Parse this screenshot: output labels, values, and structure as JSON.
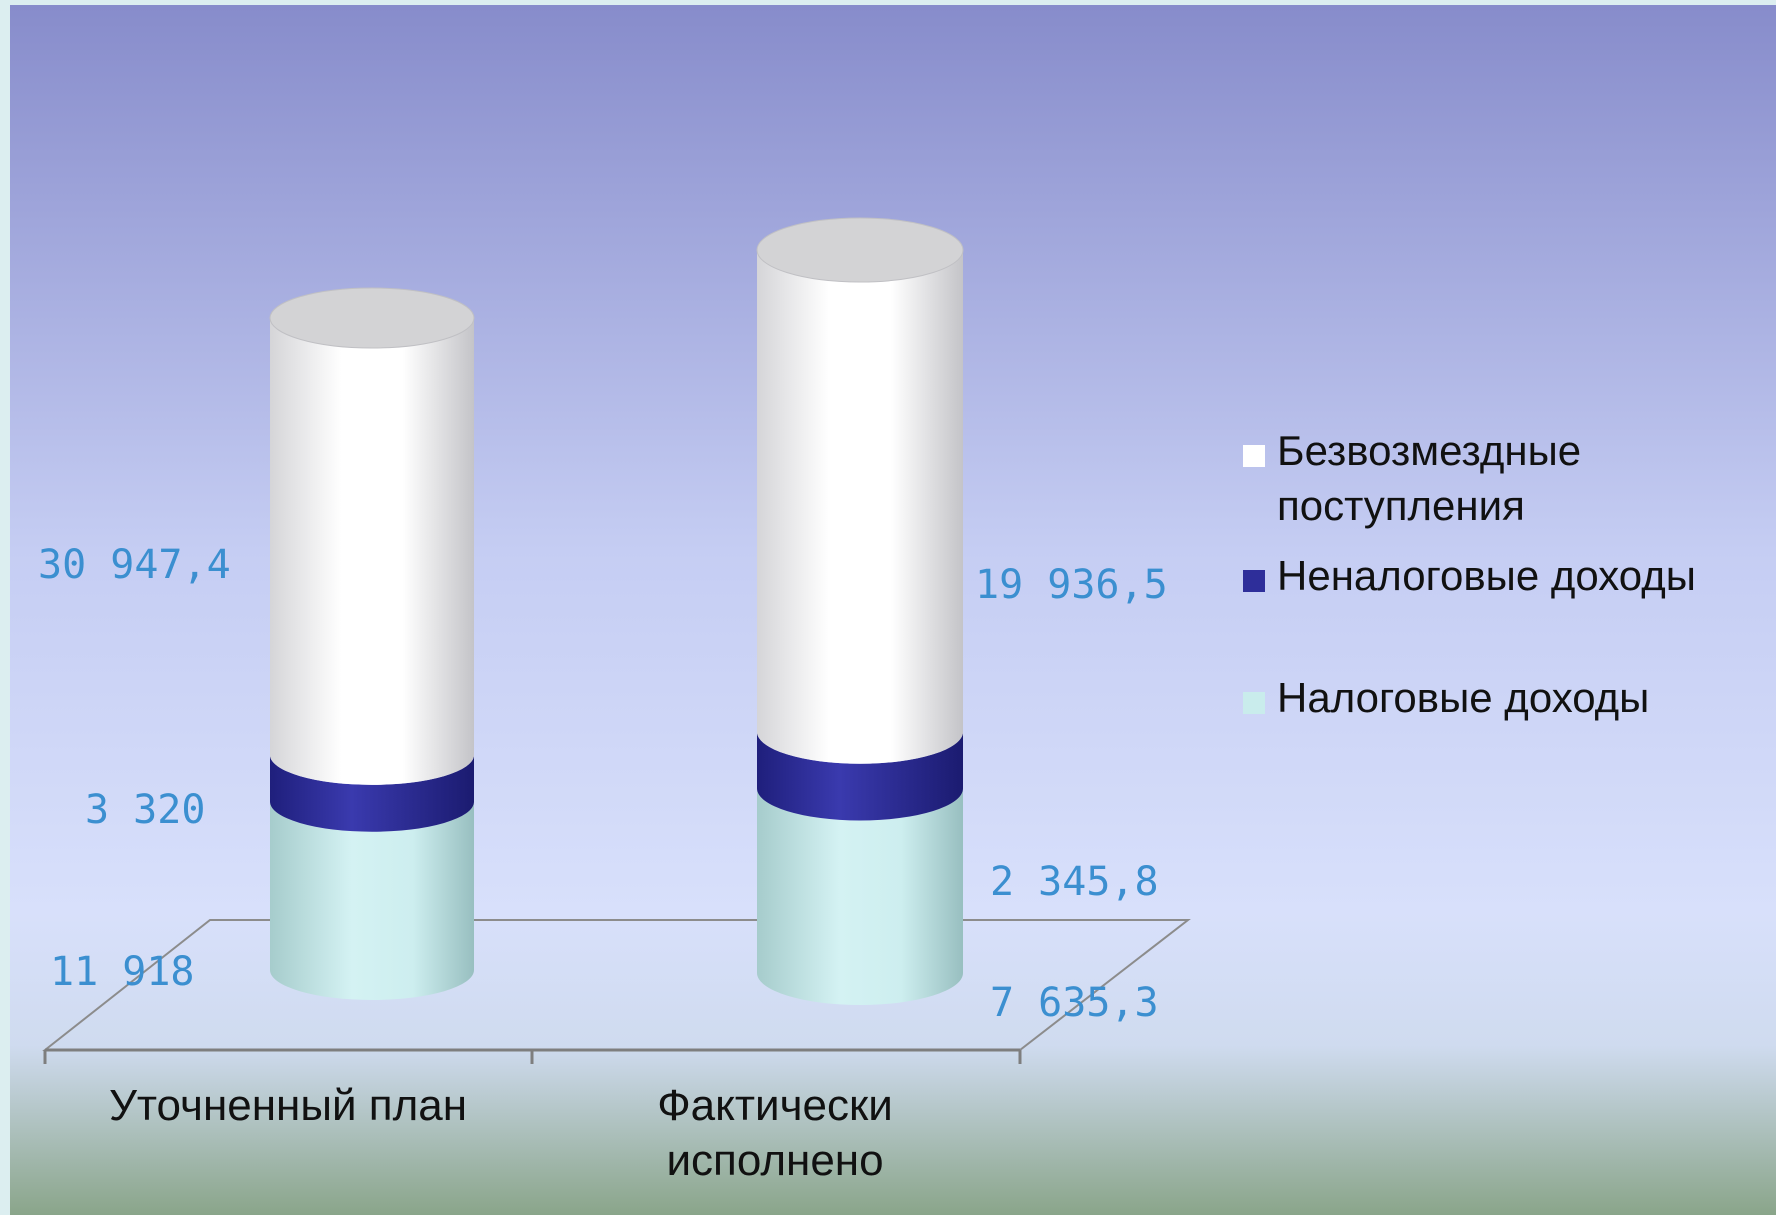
{
  "chart_data": {
    "type": "bar",
    "stacked": true,
    "style": "3d-cylinder",
    "categories": [
      "Уточненный план",
      "Фактически исполнено"
    ],
    "category_lines": [
      [
        "Уточненный план"
      ],
      [
        "Фактически",
        "исполнено"
      ]
    ],
    "series": [
      {
        "name": "Налоговые доходы",
        "values": [
          11918,
          7635.3
        ],
        "labels": [
          "11 918",
          "7 635,3"
        ],
        "color": "#c9ecec"
      },
      {
        "name": "Неналоговые доходы",
        "values": [
          3320,
          2345.8
        ],
        "labels": [
          "3 320",
          "2 345,8"
        ],
        "color": "#2e2e9a"
      },
      {
        "name": "Безвозмездные поступления",
        "values": [
          30947.4,
          19936.5
        ],
        "labels": [
          "30 947,4",
          "19 936,5"
        ],
        "color": "#ffffff"
      }
    ],
    "legend": {
      "position": "right",
      "entries": [
        {
          "lines": [
            "Безвозмездные",
            "поступления"
          ],
          "color": "#ffffff"
        },
        {
          "lines": [
            "Неналоговые доходы"
          ],
          "color": "#2e2e9a"
        },
        {
          "lines": [
            "Налоговые доходы"
          ],
          "color": "#c9ecec"
        }
      ]
    },
    "background": {
      "top": "#8a8fcb",
      "middle": "#d6defb",
      "bottom": "#8ba58c"
    },
    "grid": false
  }
}
